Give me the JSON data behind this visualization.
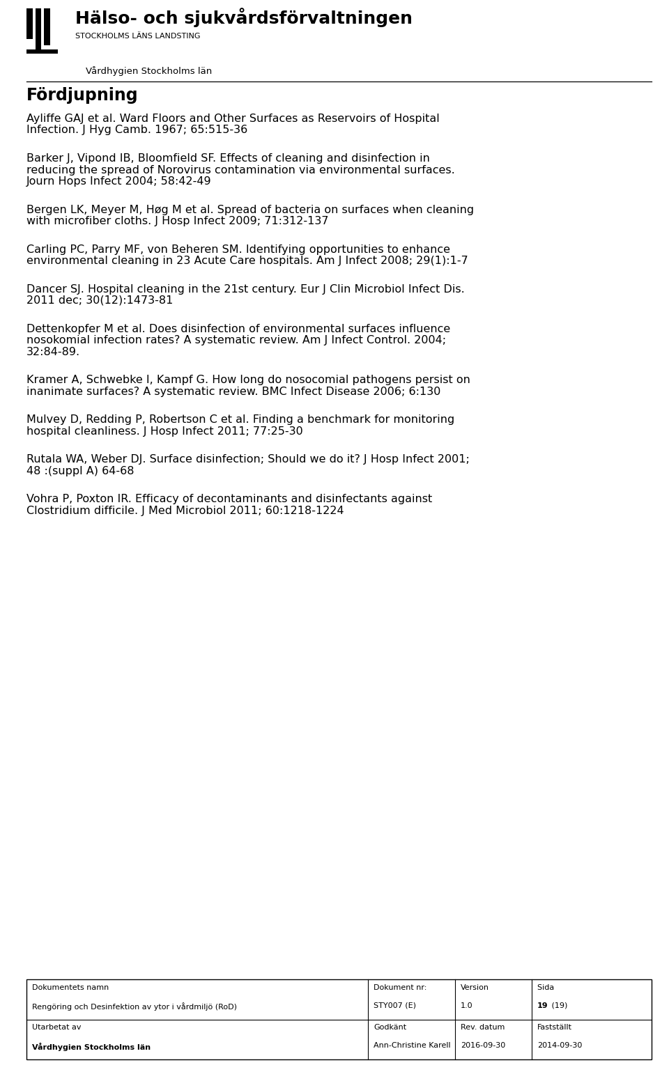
{
  "bg_color": "#ffffff",
  "page_width": 9.6,
  "page_height": 15.29,
  "dpi": 100,
  "header": {
    "org_name_bold": "Hälso- och sjukvårdsförvaltningen",
    "org_sub": "STOCKHOLMS LÄNS LANDSTING",
    "dept": "Vårdhygien Stockholms län",
    "section_title": "Fördjupning"
  },
  "references": [
    "Ayliffe GAJ et al. Ward Floors and Other Surfaces as Reservoirs of Hospital\nInfection. J Hyg Camb. 1967; 65:515-36",
    "Barker J, Vipond IB, Bloomfield SF. Effects of cleaning and disinfection in\nreducing the spread of Norovirus contamination via environmental surfaces.\nJourn Hops Infect 2004; 58:42-49",
    "Bergen LK, Meyer M, Høg M et al. Spread of bacteria on surfaces when cleaning\nwith microfiber cloths. J Hosp Infect 2009; 71:312-137",
    "Carling PC, Parry MF, von Beheren SM. Identifying opportunities to enhance\nenvironmental cleaning in 23 Acute Care hospitals. Am J Infect 2008; 29(1):1-7",
    "Dancer SJ. Hospital cleaning in the 21st century. Eur J Clin Microbiol Infect Dis.\n2011 dec; 30(12):1473-81",
    "Dettenkopfer M et al. Does disinfection of environmental surfaces influence\nnosokomial infection rates? A systematic review. Am J Infect Control. 2004;\n32:84-89.",
    "Kramer A, Schwebke I, Kampf G. How long do nosocomial pathogens persist on\ninanimate surfaces? A systematic review. BMC Infect Disease 2006; 6:130",
    "Mulvey D, Redding P, Robertson C et al. Finding a benchmark for monitoring\nhospital cleanliness. J Hosp Infect 2011; 77:25-30",
    "Rutala WA, Weber DJ. Surface disinfection; Should we do it? J Hosp Infect 2001;\n48 :(suppl A) 64-68",
    "Vohra P, Poxton IR. Efficacy of decontaminants and disinfectants against\nClostridium difficile. J Med Microbiol 2011; 60:1218-1224"
  ],
  "footer": {
    "row1_col1_label": "Dokumentets namn",
    "row1_col1_val": "Rengöring och Desinfektion av ytor i vårdmiljö (RoD)",
    "row1_col2_label": "Dokument nr:",
    "row1_col2_val": "STY007 (E)",
    "row1_col3_label": "Version",
    "row1_col3_val": "1.0",
    "row1_col4_label": "Sida ",
    "row1_col4_val_bold": "19",
    "row1_col4_val_rest": " (19)",
    "row2_col1_label": "Utarbetat av",
    "row2_col1_val_bold": "Vårdhygien Stockholms län",
    "row2_col2_label": "Godkänt",
    "row2_col2_val": "Ann-Christine Karell",
    "row2_col3_label": "Rev. datum",
    "row2_col3_val": "2016-09-30",
    "row2_col4_label": "Fastställt",
    "row2_col4_val": "2014-09-30"
  }
}
